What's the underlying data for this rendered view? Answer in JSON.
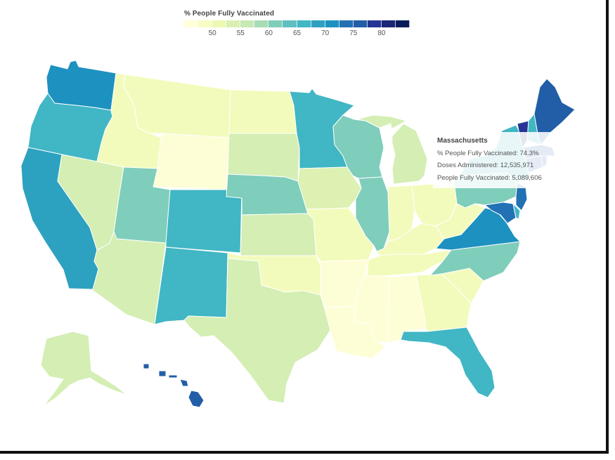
{
  "legend": {
    "title": "% People Fully Vaccinated",
    "colors": [
      "#ffffd9",
      "#f7fcc3",
      "#edf8b1",
      "#d9f0b3",
      "#c7e9b4",
      "#a8dcb6",
      "#7fcdbb",
      "#5fbfc1",
      "#41b6c4",
      "#2da1c0",
      "#1d91c0",
      "#2271b4",
      "#225ea8",
      "#253494",
      "#1c2578",
      "#081d58"
    ],
    "ticks": [
      "50",
      "55",
      "60",
      "65",
      "70",
      "75",
      "80"
    ]
  },
  "tooltip": {
    "title": "Massachusetts",
    "line1": "% People Fully Vaccinated: 74.3%",
    "line2": "Doses Administered: 12,535,971",
    "line3": "People Fully Vaccinated: 5,089,606"
  },
  "map": {
    "states": [
      {
        "name": "Washington",
        "color": "#1d91c0"
      },
      {
        "name": "Oregon",
        "color": "#41b6c4"
      },
      {
        "name": "California",
        "color": "#2da1c0"
      },
      {
        "name": "Idaho",
        "color": "#f3fbbc"
      },
      {
        "name": "Nevada",
        "color": "#d4eeb4"
      },
      {
        "name": "Montana",
        "color": "#f3fbbc"
      },
      {
        "name": "Wyoming",
        "color": "#fdfed6"
      },
      {
        "name": "Utah",
        "color": "#7fcdbb"
      },
      {
        "name": "Arizona",
        "color": "#d4eeb4"
      },
      {
        "name": "Colorado",
        "color": "#41b6c4"
      },
      {
        "name": "New Mexico",
        "color": "#41b6c4"
      },
      {
        "name": "North Dakota",
        "color": "#f3fbbc"
      },
      {
        "name": "South Dakota",
        "color": "#d4eeb4"
      },
      {
        "name": "Nebraska",
        "color": "#7fcdbb"
      },
      {
        "name": "Kansas",
        "color": "#d4eeb4"
      },
      {
        "name": "Oklahoma",
        "color": "#f3fbbc"
      },
      {
        "name": "Texas",
        "color": "#d4eeb4"
      },
      {
        "name": "Minnesota",
        "color": "#41b6c4"
      },
      {
        "name": "Iowa",
        "color": "#dcf1b2"
      },
      {
        "name": "Missouri",
        "color": "#f3fbbc"
      },
      {
        "name": "Arkansas",
        "color": "#fdfed6"
      },
      {
        "name": "Louisiana",
        "color": "#fdfed6"
      },
      {
        "name": "Wisconsin",
        "color": "#7fcdbb"
      },
      {
        "name": "Illinois",
        "color": "#7fcdbb"
      },
      {
        "name": "Michigan",
        "color": "#d4eeb4"
      },
      {
        "name": "Indiana",
        "color": "#f3fbbc"
      },
      {
        "name": "Ohio",
        "color": "#f3fbbc"
      },
      {
        "name": "Kentucky",
        "color": "#f3fbbc"
      },
      {
        "name": "Tennessee",
        "color": "#f3fbbc"
      },
      {
        "name": "Mississippi",
        "color": "#fdfed6"
      },
      {
        "name": "Alabama",
        "color": "#fdfed6"
      },
      {
        "name": "Georgia",
        "color": "#f3fbbc"
      },
      {
        "name": "Florida",
        "color": "#41b6c4"
      },
      {
        "name": "South Carolina",
        "color": "#f3fbbc"
      },
      {
        "name": "North Carolina",
        "color": "#7fcdbb"
      },
      {
        "name": "Virginia",
        "color": "#1d91c0"
      },
      {
        "name": "West Virginia",
        "color": "#f3fbbc"
      },
      {
        "name": "Pennsylvania",
        "color": "#7fcdbb"
      },
      {
        "name": "New York",
        "color": "#41b6c4"
      },
      {
        "name": "Maryland",
        "color": "#2271b4"
      },
      {
        "name": "Delaware",
        "color": "#41b6c4"
      },
      {
        "name": "New Jersey",
        "color": "#2271b4"
      },
      {
        "name": "Connecticut",
        "color": "#225ea8"
      },
      {
        "name": "Rhode Island",
        "color": "#225ea8"
      },
      {
        "name": "Massachusetts",
        "color": "#225ea8"
      },
      {
        "name": "Vermont",
        "color": "#253494"
      },
      {
        "name": "New Hampshire",
        "color": "#41b6c4"
      },
      {
        "name": "Maine",
        "color": "#225ea8"
      },
      {
        "name": "Alaska",
        "color": "#d4eeb4"
      },
      {
        "name": "Hawaii",
        "color": "#225ea8"
      }
    ]
  }
}
